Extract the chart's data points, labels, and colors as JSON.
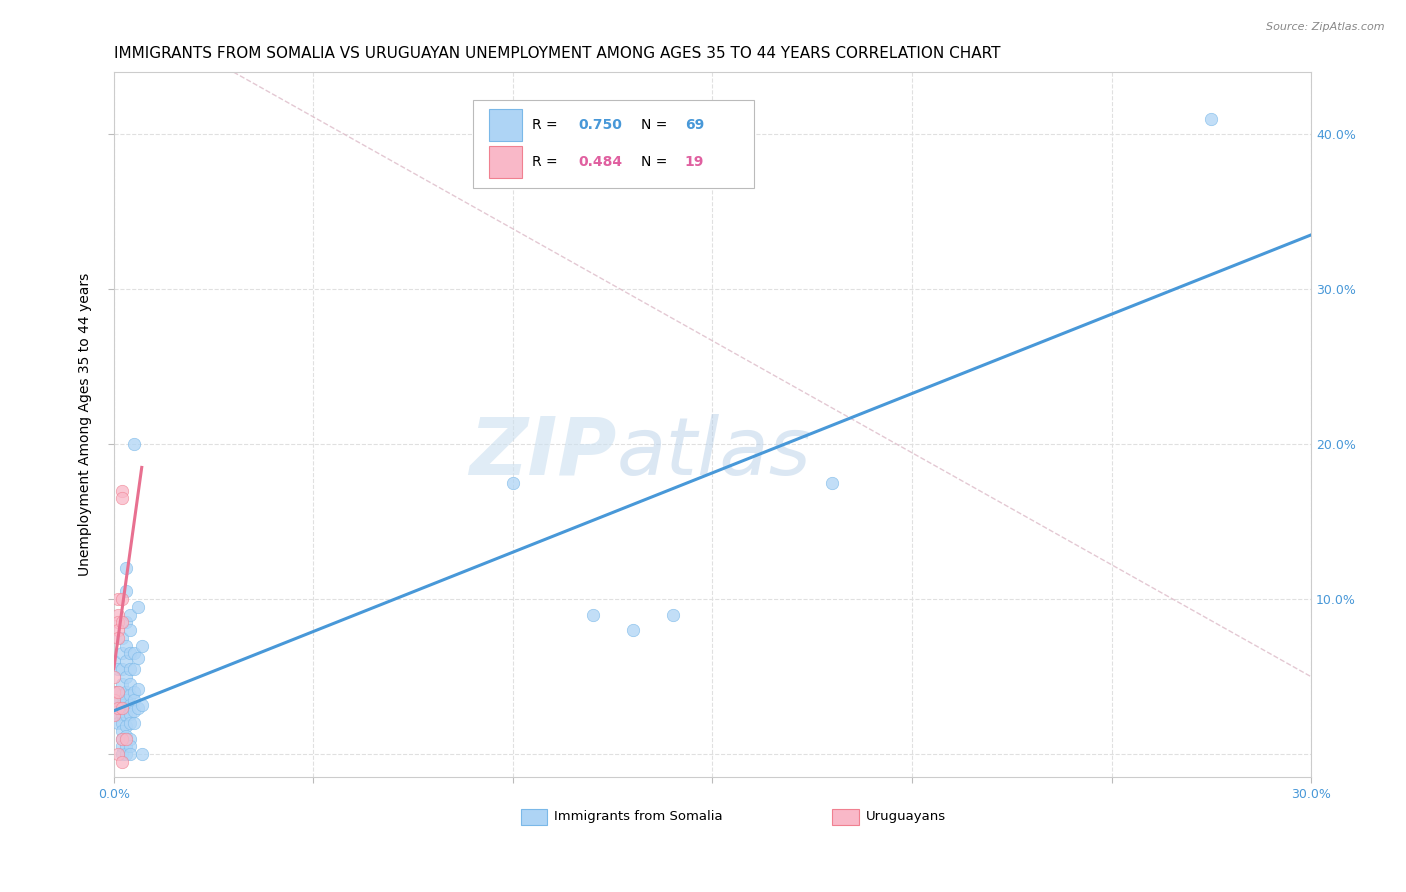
{
  "title": "IMMIGRANTS FROM SOMALIA VS URUGUAYAN UNEMPLOYMENT AMONG AGES 35 TO 44 YEARS CORRELATION CHART",
  "source": "Source: ZipAtlas.com",
  "ylabel": "Unemployment Among Ages 35 to 44 years",
  "xlim": [
    0.0,
    0.3
  ],
  "ylim": [
    -0.015,
    0.44
  ],
  "xticks": [
    0.0,
    0.05,
    0.1,
    0.15,
    0.2,
    0.25,
    0.3
  ],
  "xtick_labels": [
    "0.0%",
    "",
    "",
    "",
    "",
    "",
    "30.0%"
  ],
  "yticks": [
    0.0,
    0.1,
    0.2,
    0.3,
    0.4
  ],
  "ytick_right_labels": [
    "",
    "10.0%",
    "20.0%",
    "30.0%",
    "40.0%"
  ],
  "somalia_color": "#aed4f5",
  "somalia_edge_color": "#7ab8e8",
  "uruguay_color": "#f9b8c8",
  "uruguay_edge_color": "#f08090",
  "somalia_line_color": "#4898d8",
  "uruguay_line_color": "#e87090",
  "diag_line_color": "#c8c8c8",
  "somalia_trendline": [
    [
      0.0,
      0.028
    ],
    [
      0.3,
      0.335
    ]
  ],
  "uruguay_trendline": [
    [
      0.0,
      0.055
    ],
    [
      0.007,
      0.185
    ]
  ],
  "diag_line": [
    [
      0.03,
      0.44
    ],
    [
      0.3,
      0.05
    ]
  ],
  "somalia_points": [
    [
      0.0,
      0.06
    ],
    [
      0.0,
      0.04
    ],
    [
      0.0,
      0.035
    ],
    [
      0.0,
      0.03
    ],
    [
      0.001,
      0.055
    ],
    [
      0.001,
      0.04
    ],
    [
      0.001,
      0.035
    ],
    [
      0.001,
      0.025
    ],
    [
      0.001,
      0.02
    ],
    [
      0.002,
      0.075
    ],
    [
      0.002,
      0.065
    ],
    [
      0.002,
      0.055
    ],
    [
      0.002,
      0.045
    ],
    [
      0.002,
      0.038
    ],
    [
      0.002,
      0.032
    ],
    [
      0.002,
      0.026
    ],
    [
      0.002,
      0.02
    ],
    [
      0.002,
      0.015
    ],
    [
      0.002,
      0.01
    ],
    [
      0.002,
      0.005
    ],
    [
      0.002,
      0.0
    ],
    [
      0.003,
      0.12
    ],
    [
      0.003,
      0.105
    ],
    [
      0.003,
      0.085
    ],
    [
      0.003,
      0.07
    ],
    [
      0.003,
      0.06
    ],
    [
      0.003,
      0.05
    ],
    [
      0.003,
      0.04
    ],
    [
      0.003,
      0.035
    ],
    [
      0.003,
      0.03
    ],
    [
      0.003,
      0.025
    ],
    [
      0.003,
      0.018
    ],
    [
      0.003,
      0.012
    ],
    [
      0.003,
      0.005
    ],
    [
      0.003,
      0.0
    ],
    [
      0.004,
      0.09
    ],
    [
      0.004,
      0.08
    ],
    [
      0.004,
      0.065
    ],
    [
      0.004,
      0.055
    ],
    [
      0.004,
      0.045
    ],
    [
      0.004,
      0.038
    ],
    [
      0.004,
      0.032
    ],
    [
      0.004,
      0.026
    ],
    [
      0.004,
      0.02
    ],
    [
      0.004,
      0.01
    ],
    [
      0.004,
      0.005
    ],
    [
      0.004,
      0.0
    ],
    [
      0.005,
      0.2
    ],
    [
      0.005,
      0.065
    ],
    [
      0.005,
      0.055
    ],
    [
      0.005,
      0.04
    ],
    [
      0.005,
      0.035
    ],
    [
      0.005,
      0.028
    ],
    [
      0.005,
      0.02
    ],
    [
      0.006,
      0.095
    ],
    [
      0.006,
      0.062
    ],
    [
      0.006,
      0.042
    ],
    [
      0.006,
      0.03
    ],
    [
      0.007,
      0.07
    ],
    [
      0.007,
      0.032
    ],
    [
      0.007,
      0.0
    ],
    [
      0.1,
      0.175
    ],
    [
      0.12,
      0.09
    ],
    [
      0.13,
      0.08
    ],
    [
      0.14,
      0.09
    ],
    [
      0.18,
      0.175
    ],
    [
      0.275,
      0.41
    ]
  ],
  "uruguay_points": [
    [
      0.0,
      0.05
    ],
    [
      0.0,
      0.04
    ],
    [
      0.0,
      0.035
    ],
    [
      0.0,
      0.025
    ],
    [
      0.001,
      0.1
    ],
    [
      0.001,
      0.09
    ],
    [
      0.001,
      0.085
    ],
    [
      0.001,
      0.08
    ],
    [
      0.001,
      0.075
    ],
    [
      0.001,
      0.04
    ],
    [
      0.001,
      0.03
    ],
    [
      0.001,
      0.0
    ],
    [
      0.002,
      0.17
    ],
    [
      0.002,
      0.165
    ],
    [
      0.002,
      0.1
    ],
    [
      0.002,
      0.085
    ],
    [
      0.002,
      0.03
    ],
    [
      0.002,
      0.01
    ],
    [
      0.002,
      -0.005
    ],
    [
      0.003,
      0.01
    ]
  ],
  "background_color": "#ffffff",
  "grid_color": "#e0e0e0",
  "title_fontsize": 11,
  "axis_label_fontsize": 10,
  "tick_fontsize": 9,
  "tick_color": "#4898d8"
}
